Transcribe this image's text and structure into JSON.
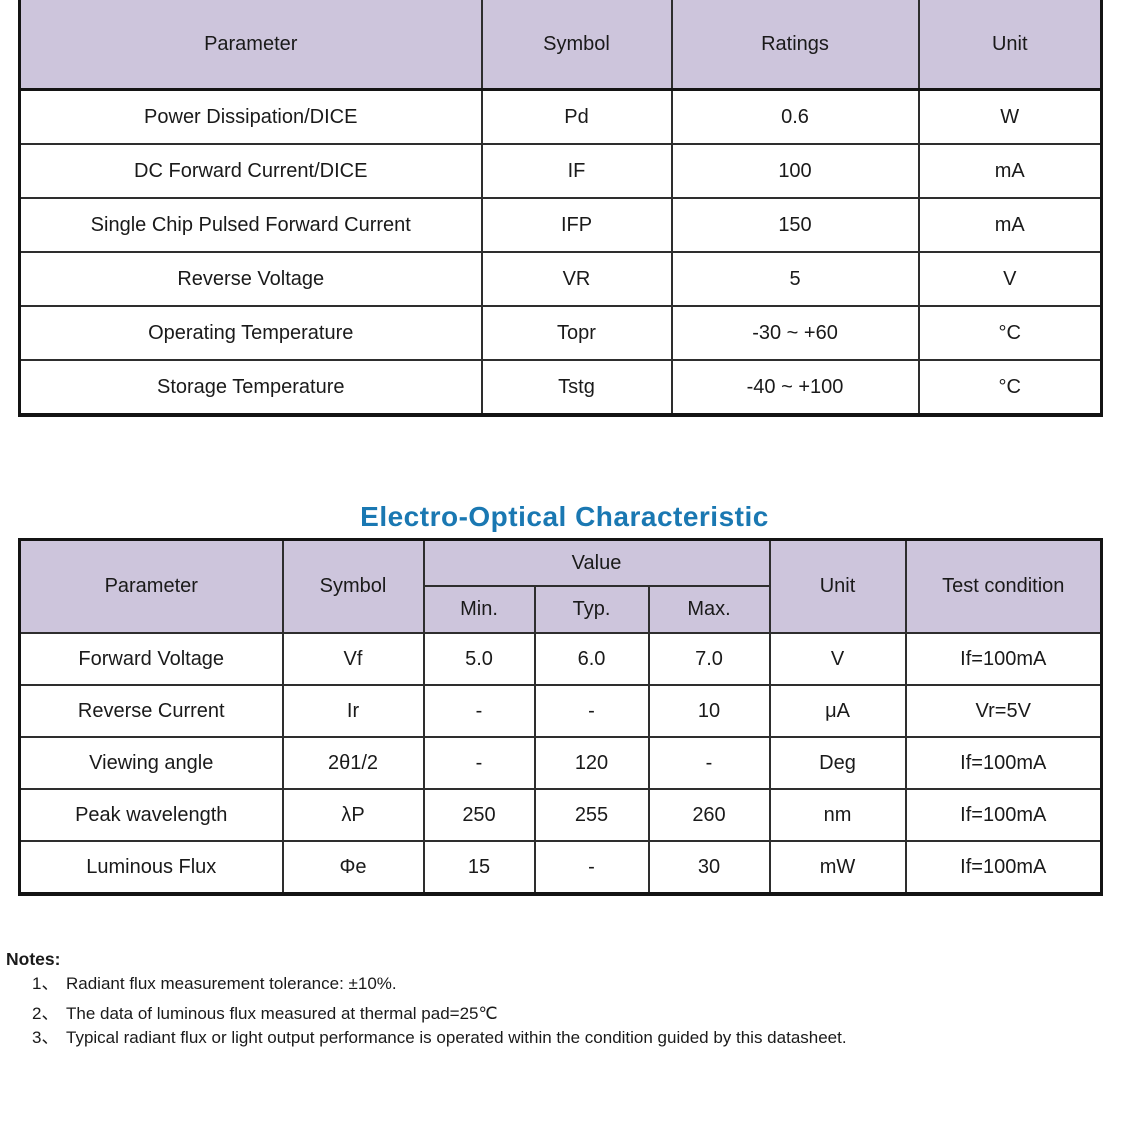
{
  "colors": {
    "header_fill": "#cdc5dc",
    "title_blue": "#1a78b2",
    "border": "#141414",
    "text": "#1a1a1a"
  },
  "ratings_table": {
    "headers": [
      "Parameter",
      "Symbol",
      "Ratings",
      "Unit"
    ],
    "rows": [
      [
        "Power Dissipation/DICE",
        "Pd",
        "0.6",
        "W"
      ],
      [
        "DC Forward Current/DICE",
        "IF",
        "100",
        "mA"
      ],
      [
        "Single Chip Pulsed Forward Current",
        "IFP",
        "150",
        "mA"
      ],
      [
        "Reverse Voltage",
        "VR",
        "5",
        "V"
      ],
      [
        "Operating Temperature",
        "Topr",
        "-30 ~ +60",
        "°C"
      ],
      [
        "Storage Temperature",
        "Tstg",
        "-40 ~ +100",
        "°C"
      ]
    ]
  },
  "eo_table": {
    "title": "Electro-Optical Characteristic",
    "headers": {
      "parameter": "Parameter",
      "symbol": "Symbol",
      "value": "Value",
      "min": "Min.",
      "typ": "Typ.",
      "max": "Max.",
      "unit": "Unit",
      "test_condition": "Test condition"
    },
    "rows": [
      [
        "Forward Voltage",
        "Vf",
        "5.0",
        "6.0",
        "7.0",
        "V",
        "If=100mA"
      ],
      [
        "Reverse Current",
        "Ir",
        "-",
        "-",
        "10",
        "μA",
        "Vr=5V"
      ],
      [
        "Viewing angle",
        "2θ1/2",
        "-",
        "120",
        "-",
        "Deg",
        "If=100mA"
      ],
      [
        "Peak wavelength",
        "λP",
        "250",
        "255",
        "260",
        "nm",
        "If=100mA"
      ],
      [
        "Luminous Flux",
        "Φe",
        "15",
        "-",
        "30",
        "mW",
        "If=100mA"
      ]
    ]
  },
  "notes": {
    "label": "Notes:",
    "items": [
      {
        "num": "1、",
        "text": "Radiant flux measurement tolerance: ±10%."
      },
      {
        "num": "2、",
        "text": "The data of luminous flux measured at thermal pad=25℃"
      },
      {
        "num": "3、",
        "text": "Typical radiant flux or light output performance is operated within the condition guided by this datasheet."
      }
    ]
  }
}
